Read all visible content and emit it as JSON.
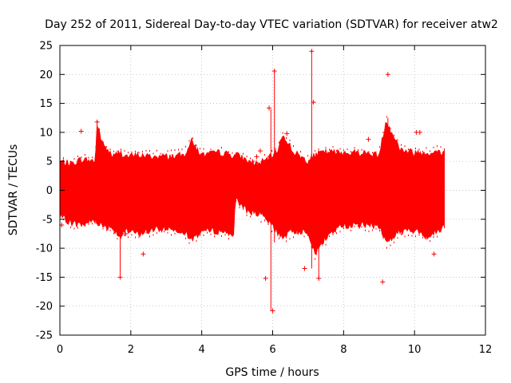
{
  "chart_data": {
    "type": "scatter",
    "title": "Day 252 of 2011, Sidereal Day-to-day VTEC variation (SDTVAR) for receiver atw2",
    "xlabel": "GPS time / hours",
    "ylabel": "SDTVAR / TECUs",
    "xlim": [
      0,
      12
    ],
    "ylim": [
      -25,
      25
    ],
    "xticks": [
      0,
      2,
      4,
      6,
      8,
      10,
      12
    ],
    "yticks": [
      -25,
      -20,
      -15,
      -10,
      -5,
      0,
      5,
      10,
      15,
      20,
      25
    ],
    "grid": true,
    "marker": "+",
    "series_color": "#ff0000",
    "data_range_hours": [
      0,
      10.85
    ],
    "envelope": {
      "x": [
        0.0,
        0.3,
        0.6,
        1.0,
        1.05,
        1.2,
        1.5,
        1.7,
        1.9,
        2.2,
        2.5,
        3.0,
        3.5,
        3.7,
        4.0,
        4.5,
        4.9,
        4.95,
        5.3,
        5.6,
        5.9,
        6.1,
        6.3,
        6.6,
        7.0,
        7.2,
        7.4,
        7.7,
        8.0,
        8.5,
        9.0,
        9.2,
        9.6,
        10.0,
        10.4,
        10.85
      ],
      "upper": [
        5.0,
        4.5,
        5.3,
        5.0,
        11.5,
        8.0,
        5.8,
        6.5,
        5.8,
        6.0,
        5.8,
        5.8,
        6.0,
        8.5,
        6.0,
        6.5,
        6.0,
        6.2,
        5.0,
        4.5,
        5.5,
        6.5,
        9.5,
        6.5,
        5.0,
        6.0,
        6.5,
        6.5,
        6.5,
        6.5,
        6.0,
        12.0,
        7.0,
        6.5,
        6.5,
        6.5
      ],
      "lower": [
        -4.5,
        -5.5,
        -6.0,
        -5.0,
        -5.5,
        -6.0,
        -6.5,
        -8.0,
        -7.0,
        -7.5,
        -7.0,
        -6.5,
        -7.0,
        -8.5,
        -7.0,
        -7.0,
        -7.5,
        -1.5,
        -3.5,
        -4.0,
        -5.5,
        -7.0,
        -8.0,
        -7.0,
        -7.0,
        -11.0,
        -9.0,
        -7.0,
        -6.0,
        -6.0,
        -6.0,
        -9.0,
        -7.0,
        -7.0,
        -8.0,
        -6.0
      ]
    },
    "outliers": [
      {
        "x": 0.05,
        "y": -6.0
      },
      {
        "x": 0.6,
        "y": 10.2
      },
      {
        "x": 1.05,
        "y": 11.8
      },
      {
        "x": 1.7,
        "y": -15.0
      },
      {
        "x": 1.85,
        "y": -7.5
      },
      {
        "x": 2.35,
        "y": -11.0
      },
      {
        "x": 5.55,
        "y": 5.8
      },
      {
        "x": 5.65,
        "y": 6.8
      },
      {
        "x": 5.8,
        "y": -15.2
      },
      {
        "x": 5.9,
        "y": 14.2
      },
      {
        "x": 6.0,
        "y": -20.8
      },
      {
        "x": 6.05,
        "y": 20.6
      },
      {
        "x": 6.4,
        "y": 9.8
      },
      {
        "x": 6.9,
        "y": -13.5
      },
      {
        "x": 7.1,
        "y": 24.0
      },
      {
        "x": 7.15,
        "y": 15.2
      },
      {
        "x": 7.3,
        "y": -15.2
      },
      {
        "x": 8.7,
        "y": 8.8
      },
      {
        "x": 9.1,
        "y": -15.8
      },
      {
        "x": 9.25,
        "y": 20.0
      },
      {
        "x": 10.05,
        "y": 10.0
      },
      {
        "x": 10.15,
        "y": 10.0
      },
      {
        "x": 10.55,
        "y": -11.0
      }
    ],
    "spikes": [
      {
        "x": 1.05,
        "from": -5.0,
        "to": 12.0
      },
      {
        "x": 1.7,
        "from": -15.0,
        "to": 6.0
      },
      {
        "x": 5.95,
        "from": -20.8,
        "to": 14.0
      },
      {
        "x": 6.05,
        "from": -9.0,
        "to": 20.6
      },
      {
        "x": 7.1,
        "from": -13.5,
        "to": 24.2
      },
      {
        "x": 7.3,
        "from": -15.2,
        "to": 6.0
      },
      {
        "x": 9.25,
        "from": -8.0,
        "to": 12.5
      }
    ]
  }
}
